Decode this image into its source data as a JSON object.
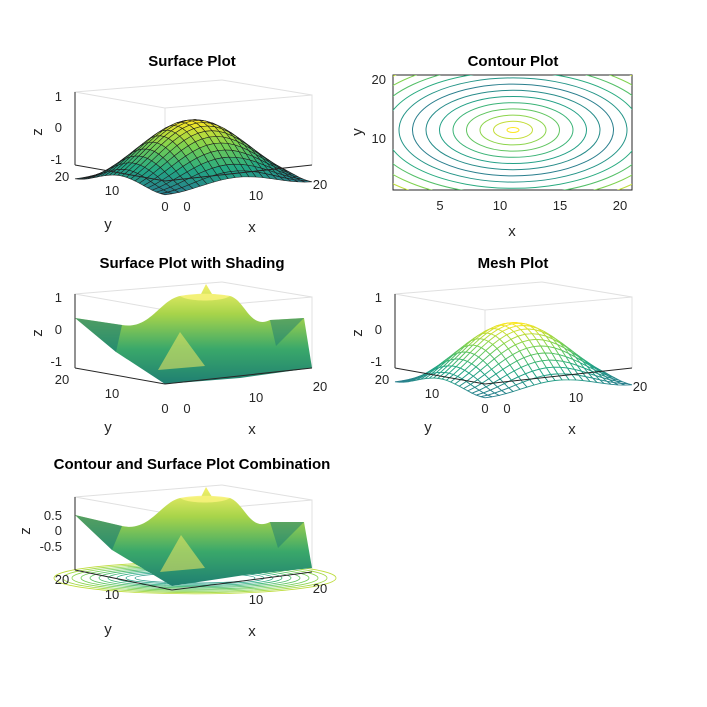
{
  "colors": {
    "colormap": [
      "#440154",
      "#2a788e",
      "#22a884",
      "#7ad151",
      "#fde725"
    ],
    "axis": "#262626",
    "grid": "#e6e6e6"
  },
  "chart_data": [
    {
      "type": "surface",
      "title": "Surface Plot",
      "xlabel": "x",
      "ylabel": "y",
      "zlabel": "z",
      "xlim": [
        0,
        20
      ],
      "ylim": [
        0,
        20
      ],
      "zlim": [
        -1,
        1
      ],
      "xticks": [
        "0",
        "10",
        "20"
      ],
      "yticks": [
        "0",
        "10",
        "20"
      ],
      "zticks": [
        "-1",
        "0",
        "1"
      ],
      "shading": "faceted",
      "function": "z = sin(sqrt(x^2 + y^2)) on a 21x21 grid",
      "grid": true
    },
    {
      "type": "contour",
      "title": "Contour Plot",
      "xlabel": "x",
      "ylabel": "y",
      "xlim": [
        1,
        21
      ],
      "ylim": [
        1,
        21
      ],
      "xticks": [
        "5",
        "10",
        "15",
        "20"
      ],
      "yticks": [
        "10",
        "20"
      ],
      "center": [
        11,
        11
      ],
      "grid": false
    },
    {
      "type": "surface",
      "title": "Surface Plot with Shading",
      "xlabel": "x",
      "ylabel": "y",
      "zlabel": "z",
      "xlim": [
        0,
        20
      ],
      "ylim": [
        0,
        20
      ],
      "zlim": [
        -1,
        1
      ],
      "xticks": [
        "0",
        "10",
        "20"
      ],
      "yticks": [
        "0",
        "10",
        "20"
      ],
      "zticks": [
        "-1",
        "0",
        "1"
      ],
      "shading": "interp",
      "grid": true
    },
    {
      "type": "mesh",
      "title": "Mesh Plot",
      "xlabel": "x",
      "ylabel": "y",
      "zlabel": "z",
      "xlim": [
        0,
        20
      ],
      "ylim": [
        0,
        20
      ],
      "zlim": [
        -1,
        1
      ],
      "xticks": [
        "0",
        "10",
        "20"
      ],
      "yticks": [
        "0",
        "10",
        "20"
      ],
      "zticks": [
        "-1",
        "0",
        "1"
      ],
      "grid": true
    },
    {
      "type": "surfc",
      "title": "Contour and Surface Plot Combination",
      "xlabel": "x",
      "ylabel": "y",
      "zlabel": "z",
      "xlim": [
        0,
        20
      ],
      "ylim": [
        0,
        20
      ],
      "xticks": [
        "10",
        "20"
      ],
      "yticks": [
        "10",
        "20"
      ],
      "zticks": [
        "0.5",
        "0",
        "-0.5"
      ],
      "shading": "interp",
      "grid": true
    }
  ]
}
